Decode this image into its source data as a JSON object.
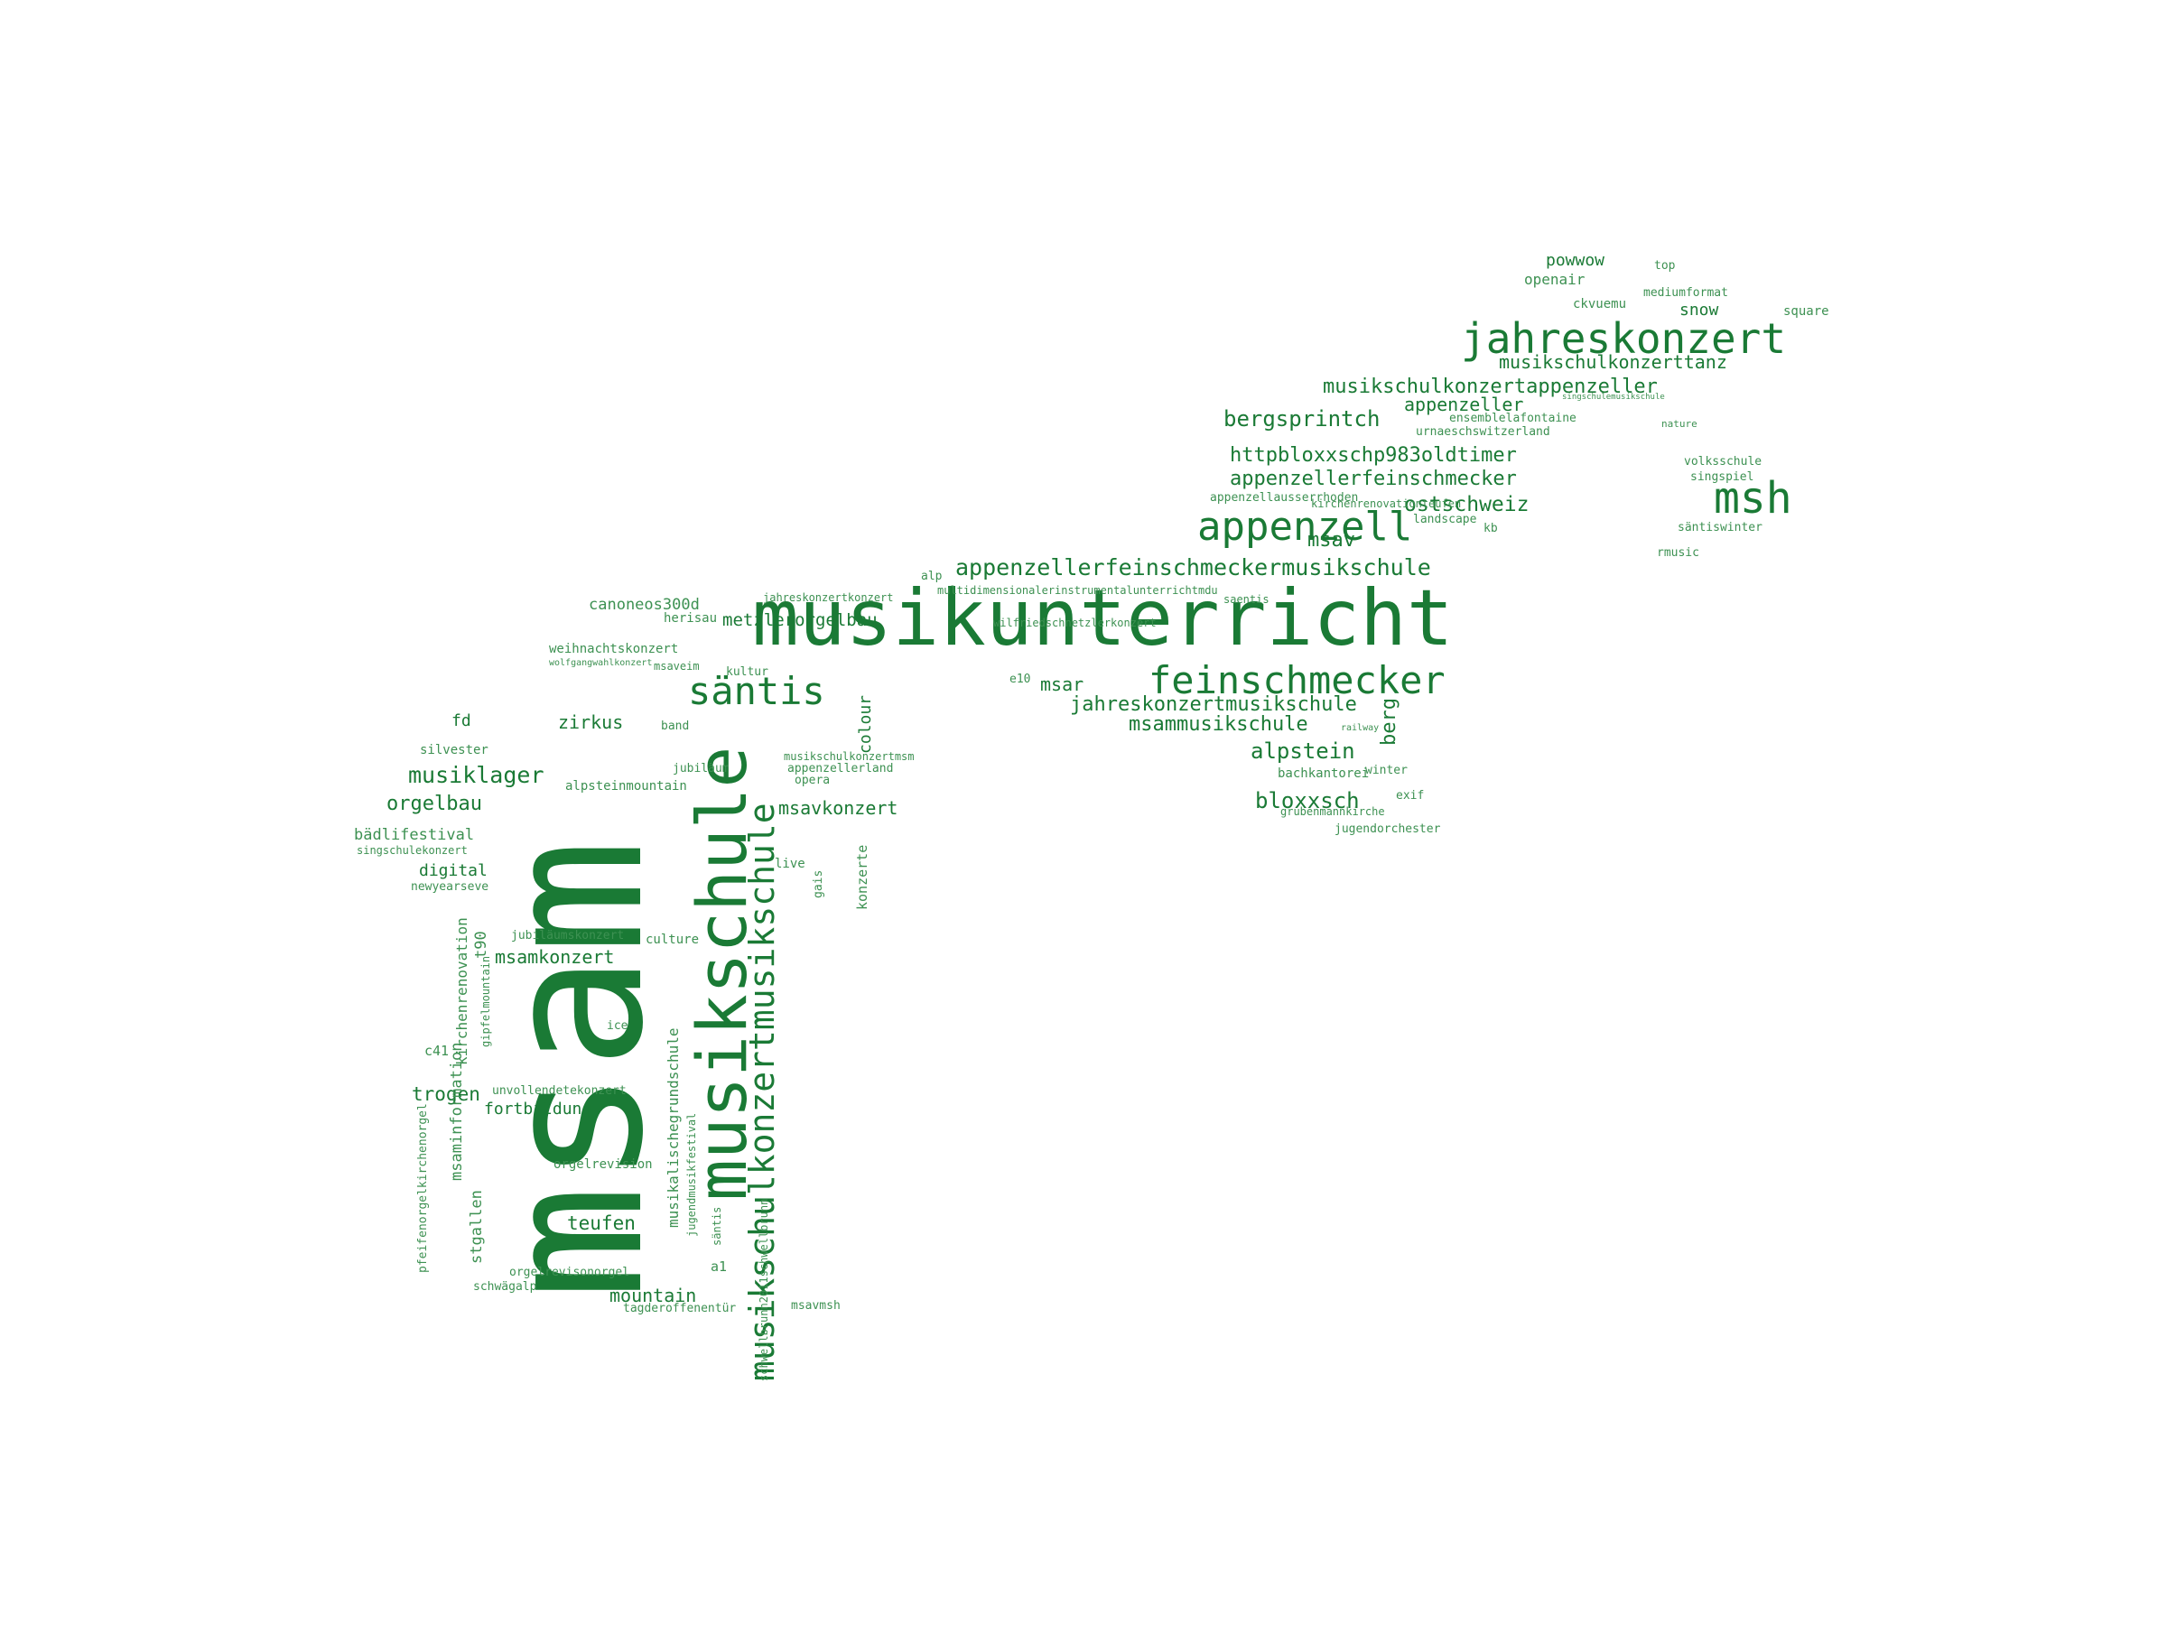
{
  "colors": {
    "word": "#1a7a35",
    "word_light": "#3d9152",
    "background": "#ffffff"
  },
  "words": [
    {
      "id": "msam",
      "text": "msam"
    },
    {
      "id": "musikunterricht",
      "text": "musikunterricht"
    },
    {
      "id": "musikschule",
      "text": "musikschule"
    },
    {
      "id": "musikschulkonzertmusikschule",
      "text": "musikschulkonzertmusikschule"
    },
    {
      "id": "jahreskonzert",
      "text": "jahreskonzert"
    },
    {
      "id": "feinschmecker",
      "text": "feinschmecker"
    },
    {
      "id": "appenzell",
      "text": "appenzell"
    },
    {
      "id": "msh",
      "text": "msh"
    },
    {
      "id": "santis",
      "text": "säntis"
    },
    {
      "id": "appenzellerfeinschmeckermusikschule",
      "text": "appenzellerfeinschmeckermusikschule"
    },
    {
      "id": "bergsprintch",
      "text": "bergsprintch"
    },
    {
      "id": "musikschulkonzertappenzeller",
      "text": "musikschulkonzertappenzeller"
    },
    {
      "id": "musikschulkonzerttanz",
      "text": "musikschulkonzerttanz"
    },
    {
      "id": "appenzeller",
      "text": "appenzeller"
    },
    {
      "id": "httpbloxxschp983oldtimer",
      "text": "httpbloxxschp983oldtimer"
    },
    {
      "id": "appenzellerfeinschmecker",
      "text": "appenzellerfeinschmecker"
    },
    {
      "id": "ostschweiz",
      "text": "ostschweiz"
    },
    {
      "id": "msav",
      "text": "msav"
    },
    {
      "id": "musiklager",
      "text": "musiklager"
    },
    {
      "id": "alpstein",
      "text": "alpstein"
    },
    {
      "id": "bloxxsch",
      "text": "bloxxsch"
    },
    {
      "id": "jahreskonzertmusikschule",
      "text": "jahreskonzertmusikschule"
    },
    {
      "id": "msammusikschule",
      "text": "msammusikschule"
    },
    {
      "id": "berg",
      "text": "berg"
    },
    {
      "id": "orgelbau",
      "text": "orgelbau"
    },
    {
      "id": "metzlerorgelbau",
      "text": "metzlerorgelbau"
    },
    {
      "id": "msar",
      "text": "msar"
    },
    {
      "id": "msavkonzert",
      "text": "msavkonzert"
    },
    {
      "id": "zirkus",
      "text": "zirkus"
    },
    {
      "id": "msamkonzert",
      "text": "msamkonzert"
    },
    {
      "id": "teufen",
      "text": "teufen"
    },
    {
      "id": "mountain",
      "text": "mountain"
    },
    {
      "id": "trogen",
      "text": "trogen"
    },
    {
      "id": "fortbildung",
      "text": "fortbildung"
    },
    {
      "id": "powwow",
      "text": "powwow"
    },
    {
      "id": "openair",
      "text": "openair"
    },
    {
      "id": "snow",
      "text": "snow"
    },
    {
      "id": "ckvuemu",
      "text": "ckvuemu"
    },
    {
      "id": "mediumformat",
      "text": "mediumformat"
    },
    {
      "id": "top",
      "text": "top"
    },
    {
      "id": "square",
      "text": "square"
    },
    {
      "id": "ensemblelafontaine",
      "text": "ensemblelafontaine"
    },
    {
      "id": "urnaeschswitzerland",
      "text": "urnaeschswitzerland"
    },
    {
      "id": "singschulemusikschule",
      "text": "singschulemusikschule"
    },
    {
      "id": "nature",
      "text": "nature"
    },
    {
      "id": "volksschule",
      "text": "volksschule"
    },
    {
      "id": "singspiel",
      "text": "singspiel"
    },
    {
      "id": "santiswinter",
      "text": "säntiswinter"
    },
    {
      "id": "rmusic",
      "text": "rmusic"
    },
    {
      "id": "appenzellausserrhoden",
      "text": "appenzellausserrhoden"
    },
    {
      "id": "landscape",
      "text": "landscape"
    },
    {
      "id": "kb",
      "text": "kb"
    },
    {
      "id": "kirchenrenovationteufen",
      "text": "kirchenrenovationteufen"
    },
    {
      "id": "saentis",
      "text": "saentis"
    },
    {
      "id": "multidimensionaler",
      "text": "multidimensionalerinstrumentalunterrichtmdu"
    },
    {
      "id": "wilfriedschnetzlerkonzert",
      "text": "wilfriedschnetzlerkonzert"
    },
    {
      "id": "e10",
      "text": "e10"
    },
    {
      "id": "jahreskonzertkonzert",
      "text": "jahreskonzertkonzert"
    },
    {
      "id": "alp",
      "text": "alp"
    },
    {
      "id": "canoneos300d",
      "text": "canoneos300d"
    },
    {
      "id": "herisau",
      "text": "herisau"
    },
    {
      "id": "weihnachtskonzert",
      "text": "weihnachtskonzert"
    },
    {
      "id": "wolfgangwahlkonzert",
      "text": "wolfgangwahlkonzert"
    },
    {
      "id": "msaveim",
      "text": "msaveim"
    },
    {
      "id": "kultur",
      "text": "kultur"
    },
    {
      "id": "band",
      "text": "band"
    },
    {
      "id": "fd",
      "text": "fd"
    },
    {
      "id": "silvester",
      "text": "silvester"
    },
    {
      "id": "jubilaum",
      "text": "jubiläum"
    },
    {
      "id": "musikschulkonzertmsm",
      "text": "musikschulkonzertmsm"
    },
    {
      "id": "appenzellerland",
      "text": "appenzellerland"
    },
    {
      "id": "opera",
      "text": "opera"
    },
    {
      "id": "colour",
      "text": "colour"
    },
    {
      "id": "alpsteinmountain",
      "text": "alpsteinmountain"
    },
    {
      "id": "badlifestival",
      "text": "bädlifestival"
    },
    {
      "id": "singschulekonzert",
      "text": "singschulekonzert"
    },
    {
      "id": "digital",
      "text": "digital"
    },
    {
      "id": "newyearseve",
      "text": "newyearseve"
    },
    {
      "id": "live",
      "text": "live"
    },
    {
      "id": "konzerte",
      "text": "konzerte"
    },
    {
      "id": "gais",
      "text": "gais"
    },
    {
      "id": "jubilaumskonzert",
      "text": "jubiläumskonzert"
    },
    {
      "id": "culture",
      "text": "culture"
    },
    {
      "id": "t90",
      "text": "t90"
    },
    {
      "id": "msaminformation",
      "text": "msaminformation"
    },
    {
      "id": "kirchenrenovation",
      "text": "kirchenrenovation"
    },
    {
      "id": "gipfelmountain",
      "text": "gipfelmountain"
    },
    {
      "id": "ice",
      "text": "ice"
    },
    {
      "id": "c41",
      "text": "c41"
    },
    {
      "id": "unvollendetekonzert",
      "text": "unvollendetekonzert"
    },
    {
      "id": "orgelrevision",
      "text": "orgelrevision"
    },
    {
      "id": "musikalischegrundschule",
      "text": "musikalischegrundschule"
    },
    {
      "id": "jugendmusikfestival",
      "text": "jugendmusikfestival"
    },
    {
      "id": "pfeifenorgelkirchenorgel",
      "text": "pfeifenorgelkirchenorgel"
    },
    {
      "id": "stgallen",
      "text": "stgallen"
    },
    {
      "id": "orgelrevisonorgel",
      "text": "orgelrevisonorgel"
    },
    {
      "id": "schwagalp",
      "text": "schwägalp"
    },
    {
      "id": "a1",
      "text": "a1"
    },
    {
      "id": "tagderoffenentur",
      "text": "tagderoffenentür"
    },
    {
      "id": "msavmsh",
      "text": "msavmsh"
    },
    {
      "id": "santis2",
      "text": "säntis"
    },
    {
      "id": "schwellbrunn",
      "text": "schwellbrunn2011schwellbrunn"
    },
    {
      "id": "bachkantorei",
      "text": "bachkantorei"
    },
    {
      "id": "winter",
      "text": "winter"
    },
    {
      "id": "exif",
      "text": "exif"
    },
    {
      "id": "grubenmannkirche",
      "text": "grubenmannkirche"
    },
    {
      "id": "jugendorchester",
      "text": "jugendorchester"
    },
    {
      "id": "railway",
      "text": "railway"
    }
  ]
}
